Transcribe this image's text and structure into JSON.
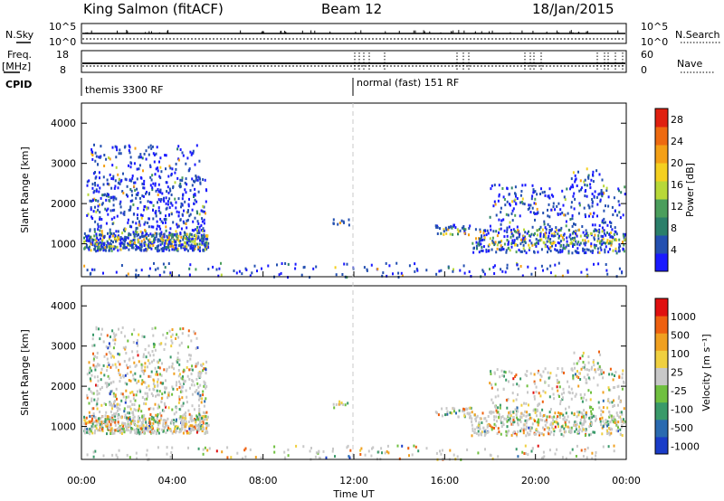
{
  "header": {
    "station": "King Salmon (fitACF)",
    "beam": "Beam 12",
    "date": "18/Jan/2015"
  },
  "top_panels": {
    "nsky_label": "N.Sky",
    "nsearch_label": "N.Search",
    "nsky_ticks": [
      "10^5",
      "10^0"
    ],
    "nsearch_ticks": [
      "10^5",
      "10^0"
    ],
    "freq_label_1": "Freq.",
    "freq_label_2": "[MHz]",
    "freq_ticks": [
      "18",
      "8"
    ],
    "nave_label": "Nave",
    "nave_ticks": [
      "60",
      "0"
    ],
    "cpid_label": "CPID",
    "cpid_segments": [
      "themis 3300 RF",
      "normal (fast) 151 RF"
    ]
  },
  "chart_data": [
    {
      "type": "heatmap",
      "ylabel": "Slant Range [km]",
      "xlabel": "Time UT",
      "xlim": [
        "00:00",
        "24:00"
      ],
      "ylim": [
        180,
        4500
      ],
      "x_ticks": [
        "00:00",
        "04:00",
        "08:00",
        "12:00",
        "16:00",
        "20:00",
        "00:00"
      ],
      "y_ticks": [
        1000,
        2000,
        3000,
        4000
      ],
      "colorbar": {
        "label": "Power [dB]",
        "ticks": [
          "4",
          "8",
          "12",
          "16",
          "20",
          "24",
          "28"
        ],
        "range": [
          0,
          30
        ],
        "colors": [
          "#1a1aff",
          "#2450b0",
          "#2b7f6a",
          "#4b9e5c",
          "#b8d838",
          "#f4d020",
          "#f4a016",
          "#ee6a10",
          "#e02010"
        ]
      }
    },
    {
      "type": "heatmap",
      "ylabel": "Slant Range [km]",
      "xlabel": "Time UT",
      "xlim": [
        "00:00",
        "24:00"
      ],
      "ylim": [
        180,
        4500
      ],
      "x_ticks": [
        "00:00",
        "04:00",
        "08:00",
        "12:00",
        "16:00",
        "20:00",
        "00:00"
      ],
      "y_ticks": [
        1000,
        2000,
        3000,
        4000
      ],
      "colorbar": {
        "label": "Velocity [m s⁻¹]",
        "ticks": [
          "1000",
          "500",
          "100",
          "25",
          "-25",
          "-100",
          "-500",
          "-1000"
        ],
        "colors": [
          "#1a3cc8",
          "#2a6ab0",
          "#3a9a6a",
          "#70c040",
          "#c8c8c8",
          "#f0d040",
          "#f0a020",
          "#ee6010",
          "#e01010"
        ]
      }
    }
  ]
}
